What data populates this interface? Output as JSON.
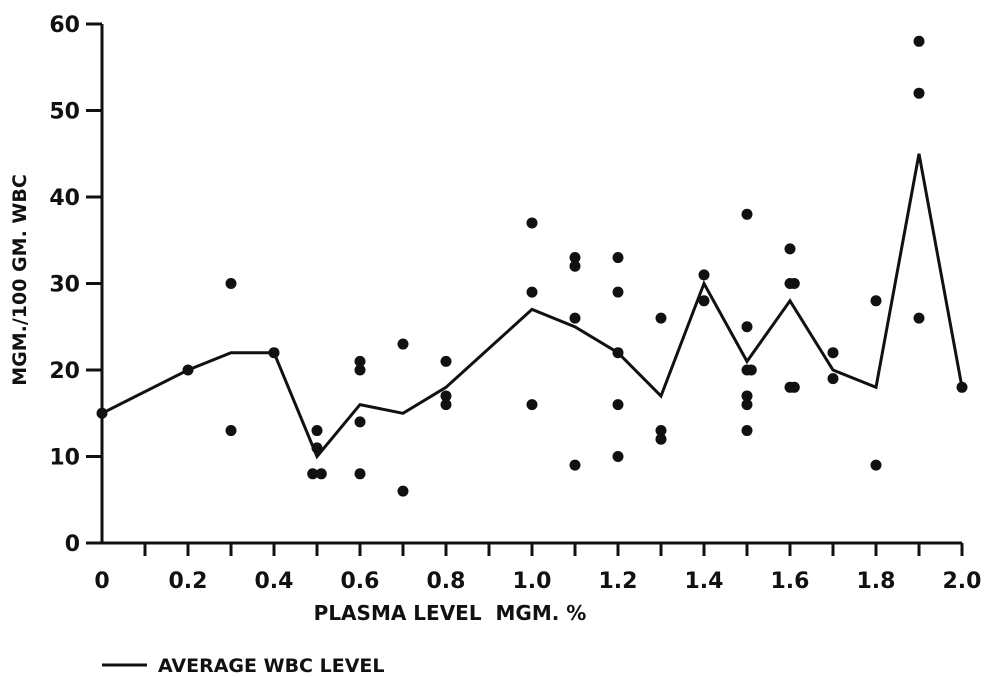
{
  "chart_data": {
    "type": "scatter",
    "title": "",
    "xlabel": "PLASMA LEVEL  MGM. %",
    "ylabel": "MGM./100 GM. WBC",
    "xlim": [
      0,
      2.0
    ],
    "ylim": [
      0,
      60
    ],
    "x_ticks": [
      "0",
      "0.2",
      "0.4",
      "0.6",
      "0.8",
      "1.0",
      "1.2",
      "1.4",
      "1.6",
      "1.8",
      "2.0"
    ],
    "y_ticks": [
      "0",
      "10",
      "20",
      "30",
      "40",
      "50",
      "60"
    ],
    "grid": false,
    "legend_position": "bottom-left",
    "series": [
      {
        "name": "",
        "kind": "scatter",
        "points": [
          [
            0,
            15
          ],
          [
            0.2,
            20
          ],
          [
            0.3,
            30
          ],
          [
            0.3,
            13
          ],
          [
            0.4,
            22
          ],
          [
            0.5,
            13
          ],
          [
            0.5,
            11
          ],
          [
            0.49,
            8
          ],
          [
            0.51,
            8
          ],
          [
            0.6,
            21
          ],
          [
            0.6,
            20
          ],
          [
            0.6,
            14
          ],
          [
            0.6,
            8
          ],
          [
            0.7,
            23
          ],
          [
            0.7,
            6
          ],
          [
            0.8,
            21
          ],
          [
            0.8,
            17
          ],
          [
            0.8,
            16
          ],
          [
            1.0,
            37
          ],
          [
            1.0,
            29
          ],
          [
            1.0,
            16
          ],
          [
            1.1,
            33
          ],
          [
            1.1,
            32
          ],
          [
            1.1,
            26
          ],
          [
            1.1,
            9
          ],
          [
            1.2,
            33
          ],
          [
            1.2,
            29
          ],
          [
            1.2,
            22
          ],
          [
            1.2,
            16
          ],
          [
            1.2,
            10
          ],
          [
            1.3,
            26
          ],
          [
            1.3,
            13
          ],
          [
            1.3,
            12
          ],
          [
            1.4,
            31
          ],
          [
            1.4,
            28
          ],
          [
            1.5,
            38
          ],
          [
            1.5,
            25
          ],
          [
            1.5,
            20
          ],
          [
            1.51,
            20
          ],
          [
            1.5,
            17
          ],
          [
            1.5,
            16
          ],
          [
            1.5,
            13
          ],
          [
            1.6,
            34
          ],
          [
            1.6,
            30
          ],
          [
            1.61,
            30
          ],
          [
            1.6,
            18
          ],
          [
            1.61,
            18
          ],
          [
            1.7,
            22
          ],
          [
            1.7,
            19
          ],
          [
            1.8,
            28
          ],
          [
            1.8,
            9
          ],
          [
            1.9,
            58
          ],
          [
            1.9,
            52
          ],
          [
            1.9,
            26
          ],
          [
            2.0,
            18
          ]
        ]
      },
      {
        "name": "AVERAGE WBC LEVEL",
        "kind": "line",
        "points": [
          [
            0,
            15
          ],
          [
            0.2,
            20
          ],
          [
            0.3,
            22
          ],
          [
            0.4,
            22
          ],
          [
            0.5,
            10
          ],
          [
            0.6,
            16
          ],
          [
            0.7,
            15
          ],
          [
            0.8,
            18
          ],
          [
            1.0,
            27
          ],
          [
            1.1,
            25
          ],
          [
            1.2,
            22
          ],
          [
            1.3,
            17
          ],
          [
            1.4,
            30
          ],
          [
            1.5,
            21
          ],
          [
            1.6,
            28
          ],
          [
            1.7,
            20
          ],
          [
            1.8,
            18
          ],
          [
            1.9,
            45
          ],
          [
            2.0,
            18
          ]
        ]
      }
    ],
    "colors": {
      "ink": "#111111",
      "background": "#ffffff"
    }
  }
}
